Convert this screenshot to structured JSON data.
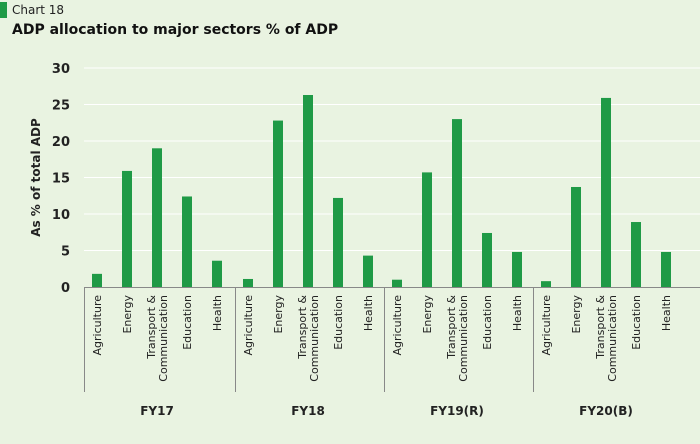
{
  "header": {
    "chart_label": "Chart 18",
    "title": "ADP allocation to major sectors % of ADP"
  },
  "colors": {
    "bar": "#1f9a46",
    "background": "#e9f3e1",
    "grid": "#ffffff",
    "axis": "#888888"
  },
  "chart_data": {
    "type": "bar",
    "title": "ADP allocation to major sectors % of ADP",
    "xlabel": "",
    "ylabel": "As % of total ADP",
    "ylim": [
      0,
      30
    ],
    "yticks": [
      0,
      5,
      10,
      15,
      20,
      25,
      30
    ],
    "grid": true,
    "legend": "none",
    "groups": [
      {
        "name": "FY17",
        "categories": [
          "Agriculture",
          "Energy",
          "Transport & Communication",
          "Education",
          "Health"
        ],
        "values": [
          1.8,
          15.9,
          19.0,
          12.4,
          3.6
        ]
      },
      {
        "name": "FY18",
        "categories": [
          "Agriculture",
          "Energy",
          "Transport & Communication",
          "Education",
          "Health"
        ],
        "values": [
          1.1,
          22.8,
          26.3,
          12.2,
          4.3
        ]
      },
      {
        "name": "FY19(R)",
        "categories": [
          "Agriculture",
          "Energy",
          "Transport & Communication",
          "Education",
          "Health"
        ],
        "values": [
          1.0,
          15.7,
          23.0,
          7.4,
          4.8
        ]
      },
      {
        "name": "FY20(B)",
        "categories": [
          "Agriculture",
          "Energy",
          "Transport & Communication",
          "Education",
          "Health"
        ],
        "values": [
          0.8,
          13.7,
          25.9,
          8.9,
          4.8
        ]
      }
    ]
  }
}
